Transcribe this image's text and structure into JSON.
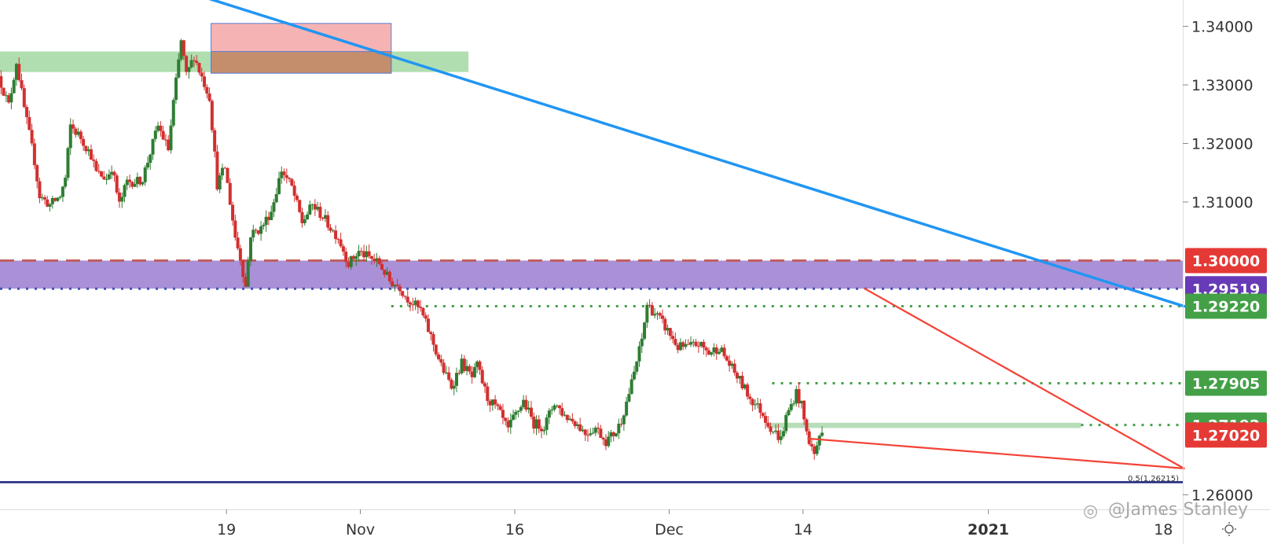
{
  "chart_data": {
    "type": "candlestick",
    "ylim": [
      1.2575,
      1.3445
    ],
    "x_ticks": [
      {
        "label": "19",
        "day": 22
      },
      {
        "label": "Nov",
        "day": 35
      },
      {
        "label": "16",
        "day": 50
      },
      {
        "label": "Dec",
        "day": 65
      },
      {
        "label": "14",
        "day": 78
      },
      {
        "label": "2021",
        "day": 96
      },
      {
        "label": "18",
        "day": 113
      }
    ],
    "y_ticks": [
      "1.34000",
      "1.33000",
      "1.32000",
      "1.31000",
      "1.26000"
    ],
    "level_badges": [
      {
        "value": 1.3,
        "label": "1.30000",
        "color": "#e53935"
      },
      {
        "value": 1.29519,
        "label": "1.29519",
        "color": "#673ab7"
      },
      {
        "value": 1.2922,
        "label": "1.29220",
        "color": "#43a047"
      },
      {
        "value": 1.27905,
        "label": "1.27905",
        "color": "#43a047"
      },
      {
        "value": 1.27192,
        "label": "1.27192",
        "color": "#43a047"
      },
      {
        "value": 1.2702,
        "label": "1.27020",
        "color": "#e53935"
      }
    ],
    "zones": [
      {
        "color": "#7cc87c",
        "opacity": 0.6,
        "day_start": 0,
        "day_end": 45.5,
        "y_low": 1.3322,
        "y_high": 1.3357
      },
      {
        "color": "#f4a6a6",
        "opacity": 0.85,
        "day_start": 20.5,
        "day_end": 38,
        "y_low": 1.332,
        "y_high": 1.3405
      },
      {
        "color": "#c08a66",
        "opacity": 0.9,
        "day_start": 20.5,
        "day_end": 38,
        "y_low": 1.332,
        "y_high": 1.3357
      },
      {
        "color": "#9575cd",
        "opacity": 0.8,
        "day_start": 0,
        "day_end": 115,
        "y_low": 1.2952,
        "y_high": 1.3
      },
      {
        "color": "#a5d6a7",
        "opacity": 0.8,
        "day_start": 74.5,
        "day_end": 105,
        "y_low": 1.2714,
        "y_high": 1.2723
      }
    ],
    "level_lines": [
      {
        "value": 1.3,
        "color": "#c06060",
        "style": "dash",
        "day_start": 0,
        "day_end": 115
      },
      {
        "value": 1.29519,
        "color": "#3f51b5",
        "style": "dot",
        "day_start": 0,
        "day_end": 115
      },
      {
        "value": 1.2922,
        "color": "#43a047",
        "style": "dot",
        "day_start": 38,
        "day_end": 115
      },
      {
        "value": 1.27905,
        "color": "#43a047",
        "style": "dot",
        "day_start": 75,
        "day_end": 115
      },
      {
        "value": 1.27192,
        "color": "#43a047",
        "style": "dot",
        "day_start": 105,
        "day_end": 115
      },
      {
        "value": 1.26215,
        "color": "#1a237e",
        "style": "solid",
        "day_start": 0,
        "day_end": 115
      }
    ],
    "trendlines": [
      {
        "color": "#2196f3",
        "width": 3.5,
        "from": [
          19.8,
          1.345
        ],
        "to": [
          115,
          1.2922
        ]
      },
      {
        "color": "#f44336",
        "width": 2.2,
        "from": [
          84,
          1.2952
        ],
        "to": [
          115,
          1.2645
        ]
      },
      {
        "color": "#f44336",
        "width": 2.2,
        "from": [
          78.5,
          1.2696
        ],
        "to": [
          115,
          1.2645
        ]
      }
    ],
    "fib_label": "0.5(1.26215)",
    "anchors": [
      [
        0,
        1.3315
      ],
      [
        2,
        1.3265
      ],
      [
        3.5,
        1.334
      ],
      [
        5,
        1.326
      ],
      [
        7,
        1.317
      ],
      [
        8,
        1.311
      ],
      [
        10,
        1.3095
      ],
      [
        12,
        1.311
      ],
      [
        13,
        1.314
      ],
      [
        14,
        1.323
      ],
      [
        16,
        1.321
      ],
      [
        18,
        1.318
      ],
      [
        19,
        1.315
      ],
      [
        21,
        1.314
      ],
      [
        22,
        1.316
      ],
      [
        23.5,
        1.3095
      ],
      [
        25,
        1.3135
      ],
      [
        27,
        1.3135
      ],
      [
        28,
        1.314
      ],
      [
        30,
        1.32
      ],
      [
        31,
        1.323
      ],
      [
        33,
        1.319
      ],
      [
        34,
        1.327
      ],
      [
        35.5,
        1.3375
      ],
      [
        36.5,
        1.3315
      ],
      [
        38,
        1.335
      ],
      [
        39,
        1.3325
      ],
      [
        41,
        1.328
      ],
      [
        42.5,
        1.313
      ],
      [
        44,
        1.316
      ],
      [
        46,
        1.304
      ],
      [
        47,
        1.3005
      ],
      [
        48,
        1.2955
      ],
      [
        49,
        1.3045
      ],
      [
        51,
        1.3055
      ],
      [
        53,
        1.3085
      ],
      [
        55,
        1.3155
      ],
      [
        57,
        1.3125
      ],
      [
        59,
        1.3065
      ],
      [
        61,
        1.3095
      ],
      [
        63,
        1.3075
      ],
      [
        65,
        1.305
      ],
      [
        66,
        1.304
      ],
      [
        68,
        1.2995
      ],
      [
        70,
        1.3015
      ],
      [
        72,
        1.3005
      ],
      [
        74,
        1.2995
      ],
      [
        76,
        1.2965
      ],
      [
        78,
        1.2955
      ],
      [
        79,
        1.294
      ],
      [
        82,
        1.2915
      ],
      [
        84,
        1.287
      ],
      [
        86,
        1.282
      ],
      [
        88,
        1.2785
      ],
      [
        90,
        1.2825
      ],
      [
        92,
        1.28
      ],
      [
        93,
        1.282
      ],
      [
        95,
        1.2765
      ],
      [
        97,
        1.2745
      ],
      [
        99,
        1.271
      ],
      [
        100,
        1.273
      ],
      [
        102,
        1.276
      ],
      [
        104,
        1.2722
      ],
      [
        106,
        1.2716
      ],
      [
        108,
        1.2758
      ],
      [
        110,
        1.2735
      ],
      [
        112,
        1.2725
      ],
      [
        114,
        1.2705
      ],
      [
        116,
        1.2715
      ],
      [
        118,
        1.2692
      ],
      [
        120,
        1.2708
      ],
      [
        121,
        1.2728
      ],
      [
        123,
        1.279
      ],
      [
        125,
        1.2865
      ],
      [
        126,
        1.2925
      ],
      [
        128,
        1.2905
      ],
      [
        130,
        1.288
      ],
      [
        132,
        1.2852
      ],
      [
        134,
        1.2852
      ],
      [
        136,
        1.2858
      ],
      [
        138,
        1.2842
      ],
      [
        140,
        1.2852
      ],
      [
        142,
        1.2822
      ],
      [
        144,
        1.2795
      ],
      [
        146,
        1.2765
      ],
      [
        148,
        1.2745
      ],
      [
        150,
        1.2715
      ],
      [
        152,
        1.2695
      ],
      [
        153,
        1.2732
      ],
      [
        155,
        1.2775
      ],
      [
        156,
        1.2752
      ],
      [
        157,
        1.2705
      ],
      [
        158.5,
        1.2668
      ],
      [
        159.5,
        1.2702
      ]
    ],
    "watermark": "@James Stanley"
  }
}
